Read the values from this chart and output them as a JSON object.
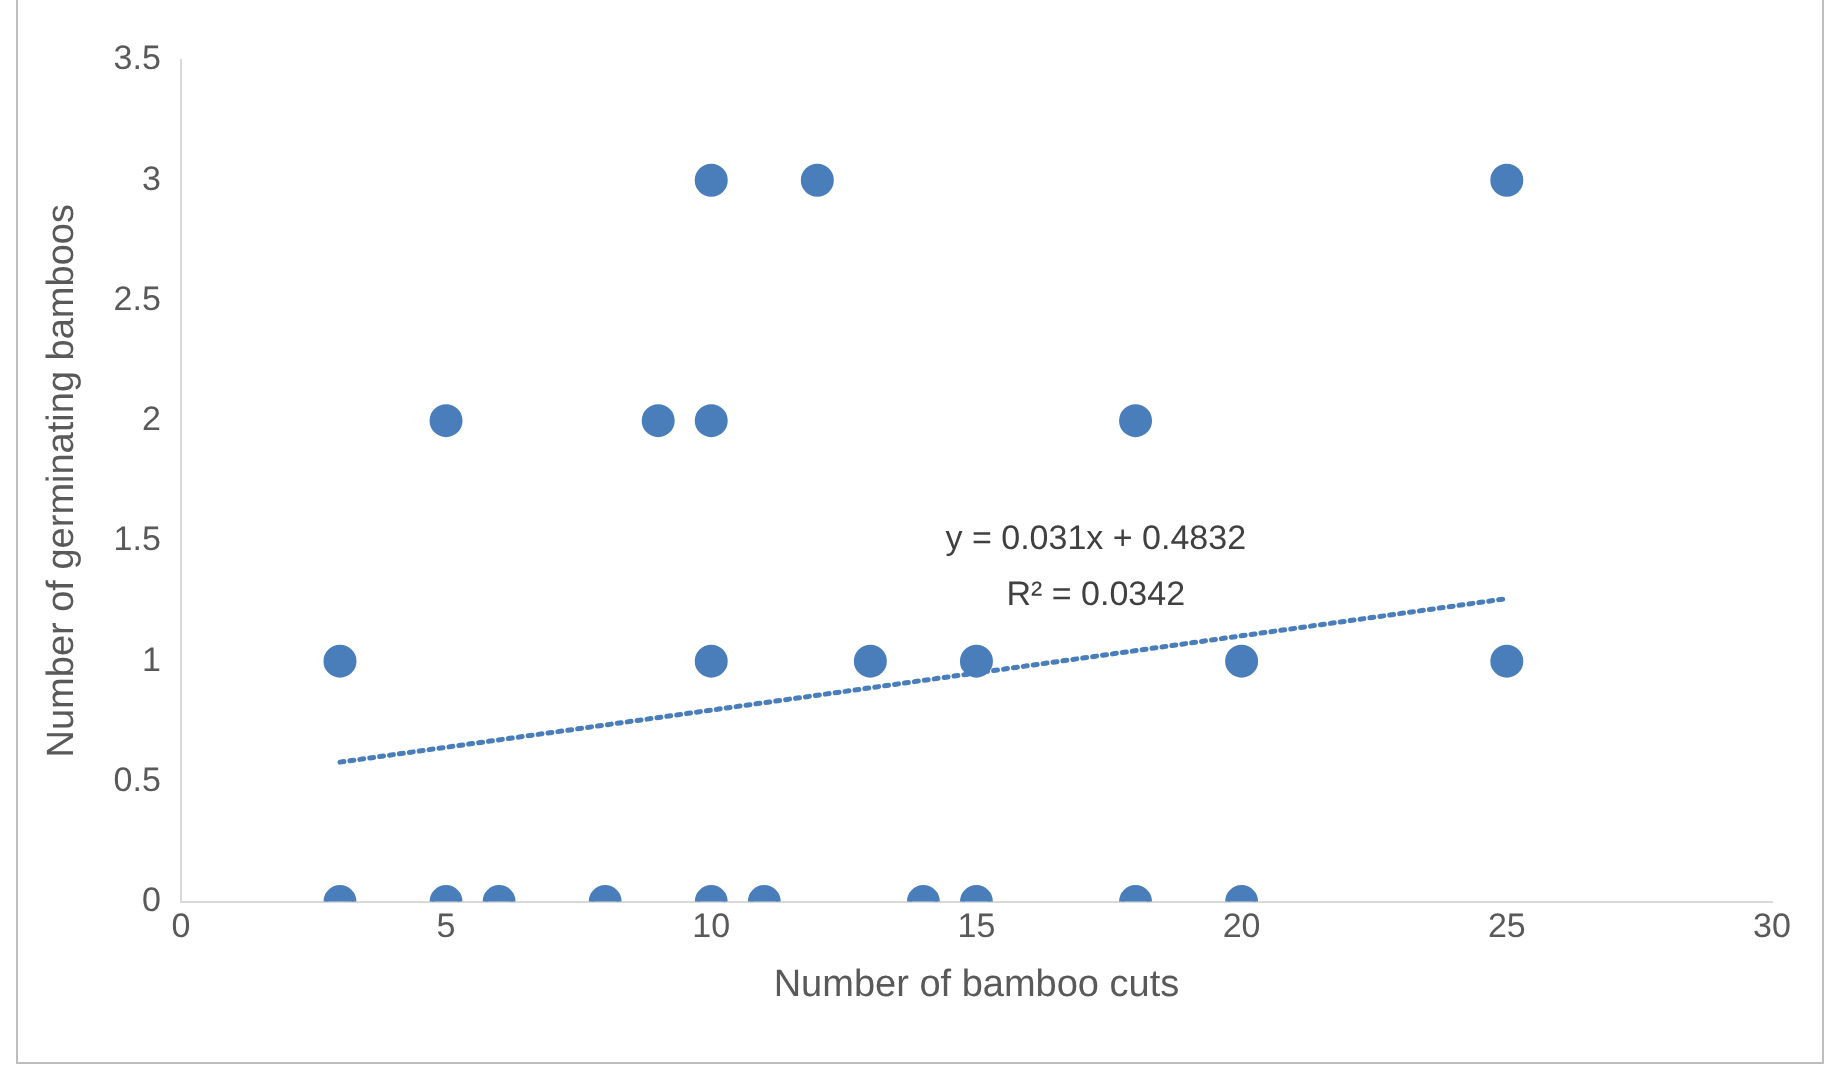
{
  "chart_data": {
    "type": "scatter",
    "xlabel": "Number of bamboo cuts",
    "ylabel": "Number of germinating bamboos",
    "xlim": [
      0,
      30
    ],
    "xticks": [
      0,
      5,
      10,
      15,
      20,
      25,
      30
    ],
    "ylim": [
      0,
      3.5
    ],
    "yticks": [
      0,
      0.5,
      1,
      1.5,
      2,
      2.5,
      3,
      3.5
    ],
    "grid": false,
    "legend": false,
    "marker": "circle",
    "series": [
      {
        "color": "#4a7ebb",
        "x": [
          10,
          12,
          25,
          5,
          9,
          10,
          18,
          3,
          10,
          13,
          15,
          20,
          25,
          3,
          5,
          6,
          8,
          10,
          11,
          14,
          15,
          18,
          20
        ],
        "values": [
          3,
          3,
          3,
          2,
          2,
          2,
          2,
          1,
          1,
          1,
          1,
          1,
          1,
          0,
          0,
          0,
          0,
          0,
          0,
          0,
          0,
          0,
          0
        ]
      },
      {
        "type": "line",
        "color": "#4a7ebb",
        "line_style": "dotted",
        "marker": "none",
        "x": [
          3,
          25
        ],
        "values": [
          0.58,
          1.26
        ]
      }
    ],
    "annotations": [
      "y = 0.031x + 0.4832",
      "R² = 0.0342"
    ]
  }
}
